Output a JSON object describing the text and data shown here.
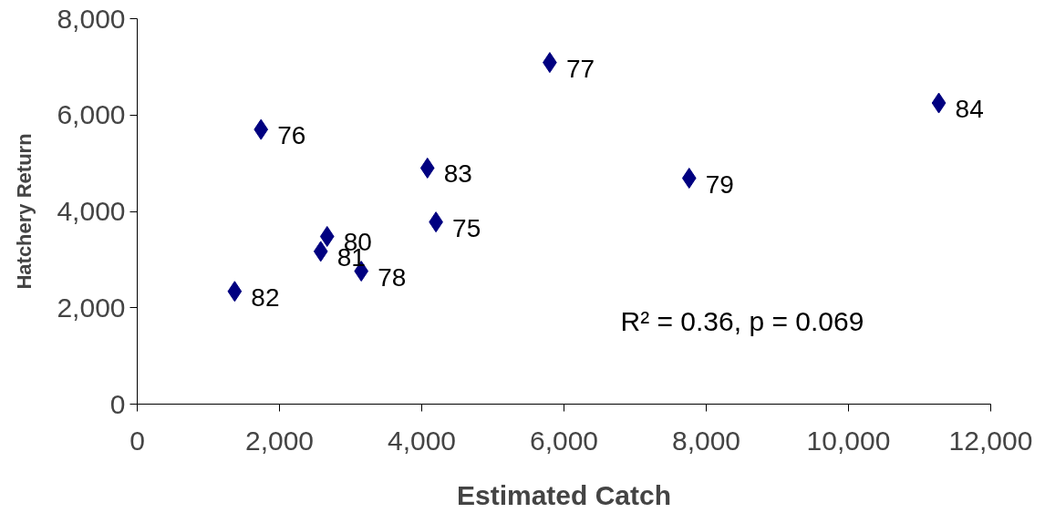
{
  "chart_data": {
    "type": "scatter",
    "xlabel": "Estimated Catch",
    "ylabel": "Hatchery Return",
    "annotations": [
      "R² = 0.36, p = 0.069",
      {
        "text": "82",
        "x": 1370,
        "y": 2340
      },
      {
        "text": "76",
        "x": 1740,
        "y": 5700
      },
      {
        "text": "81",
        "x": 2580,
        "y": 3170
      },
      {
        "text": "80",
        "x": 2670,
        "y": 3480
      },
      {
        "text": "78",
        "x": 3150,
        "y": 2760
      },
      {
        "text": "83",
        "x": 4080,
        "y": 4900
      },
      {
        "text": "75",
        "x": 4200,
        "y": 3780
      },
      {
        "text": "77",
        "x": 5800,
        "y": 7090
      },
      {
        "text": "79",
        "x": 7760,
        "y": 4690
      },
      {
        "text": "84",
        "x": 11270,
        "y": 6250
      }
    ],
    "x": [
      1370,
      1740,
      2580,
      2670,
      3150,
      4080,
      4200,
      5800,
      7760,
      11270
    ],
    "series": [
      {
        "color": "#000080",
        "values": [
          2340,
          5700,
          3170,
          3480,
          2760,
          4900,
          3780,
          7090,
          4690,
          6250
        ]
      }
    ],
    "marker": "diamond",
    "grid": false,
    "xlim": [
      0,
      12000
    ],
    "xticks": [
      {
        "value": 0,
        "label": "0"
      },
      {
        "value": 2000,
        "label": "2,000"
      },
      {
        "value": 4000,
        "label": "4,000"
      },
      {
        "value": 6000,
        "label": "6,000"
      },
      {
        "value": 8000,
        "label": "8,000"
      },
      {
        "value": 10000,
        "label": "10,000"
      },
      {
        "value": 12000,
        "label": "12,000"
      }
    ],
    "ylim": [
      0,
      8000
    ],
    "yticks": [
      {
        "value": 0,
        "label": "0"
      },
      {
        "value": 2000,
        "label": "2,000"
      },
      {
        "value": 4000,
        "label": "4,000"
      },
      {
        "value": 6000,
        "label": "6,000"
      },
      {
        "value": 8000,
        "label": "8,000"
      }
    ]
  }
}
